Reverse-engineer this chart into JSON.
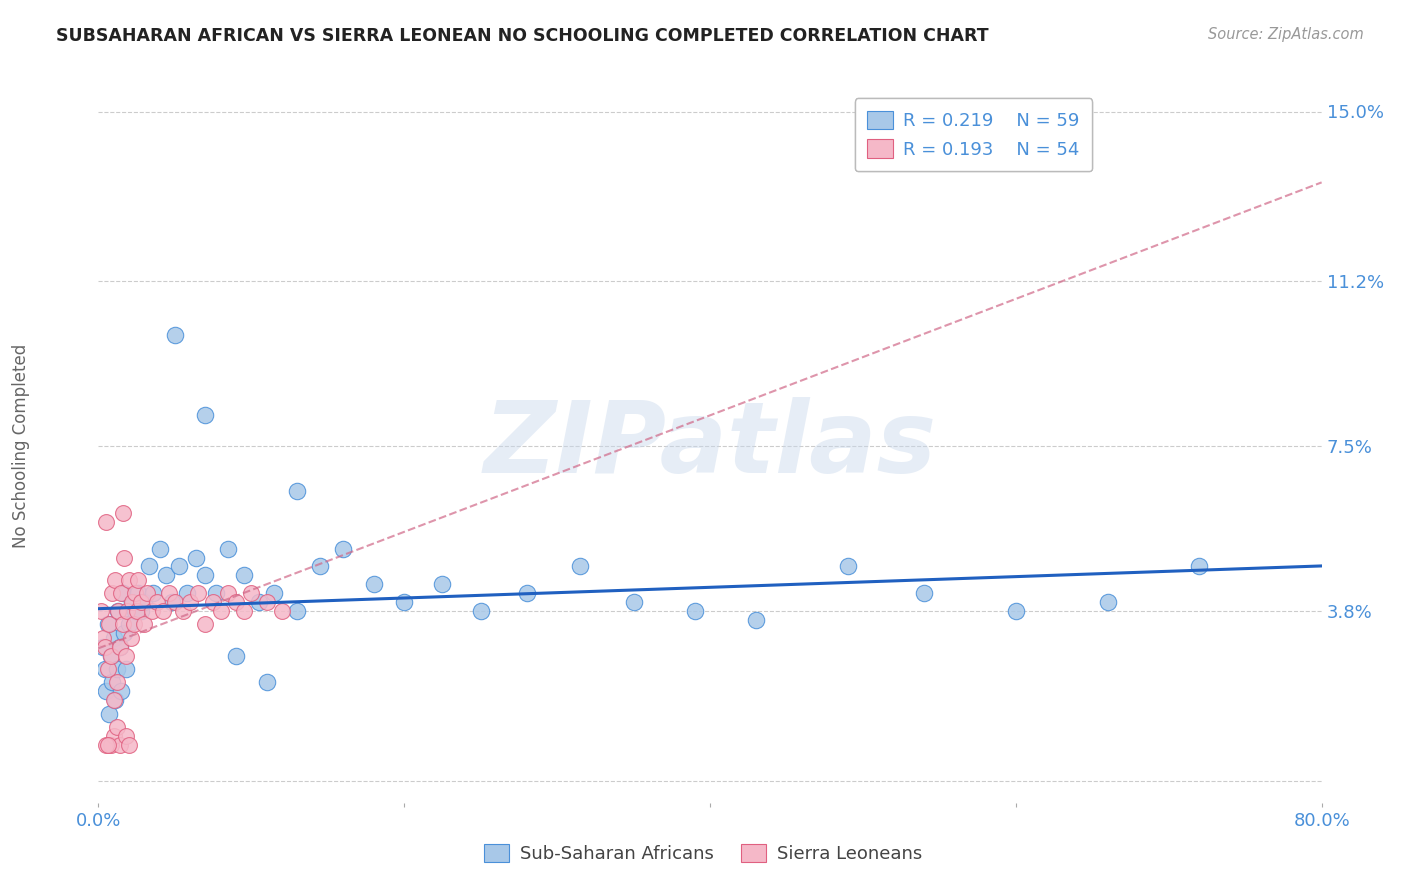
{
  "title": "SUBSAHARAN AFRICAN VS SIERRA LEONEAN NO SCHOOLING COMPLETED CORRELATION CHART",
  "source": "Source: ZipAtlas.com",
  "ylabel": "No Schooling Completed",
  "xlim": [
    0.0,
    0.8
  ],
  "ylim": [
    -0.005,
    0.155
  ],
  "yticks": [
    0.0,
    0.038,
    0.075,
    0.112,
    0.15
  ],
  "ytick_labels": [
    "",
    "3.8%",
    "7.5%",
    "11.2%",
    "15.0%"
  ],
  "xticks": [
    0.0,
    0.2,
    0.4,
    0.6,
    0.8
  ],
  "xtick_labels": [
    "0.0%",
    "",
    "",
    "",
    "80.0%"
  ],
  "blue_R": "0.219",
  "blue_N": "59",
  "pink_R": "0.193",
  "pink_N": "54",
  "blue_fill": "#a8c8e8",
  "blue_edge": "#4a90d9",
  "pink_fill": "#f5b8c8",
  "pink_edge": "#e06080",
  "blue_line_color": "#2060c0",
  "pink_line_color": "#d06888",
  "watermark": "ZIPatlas",
  "bg": "#ffffff",
  "grid_color": "#cccccc",
  "title_color": "#222222",
  "source_color": "#999999",
  "tick_color": "#4a90d9",
  "blue_x": [
    0.003,
    0.004,
    0.005,
    0.006,
    0.007,
    0.008,
    0.009,
    0.01,
    0.011,
    0.012,
    0.013,
    0.014,
    0.015,
    0.016,
    0.017,
    0.018,
    0.019,
    0.02,
    0.022,
    0.024,
    0.026,
    0.028,
    0.03,
    0.033,
    0.036,
    0.04,
    0.044,
    0.048,
    0.053,
    0.058,
    0.064,
    0.07,
    0.077,
    0.085,
    0.095,
    0.105,
    0.115,
    0.13,
    0.145,
    0.16,
    0.18,
    0.2,
    0.225,
    0.25,
    0.28,
    0.315,
    0.35,
    0.39,
    0.43,
    0.49,
    0.54,
    0.6,
    0.66,
    0.72,
    0.05,
    0.07,
    0.09,
    0.11,
    0.13
  ],
  "blue_y": [
    0.03,
    0.025,
    0.02,
    0.035,
    0.015,
    0.028,
    0.022,
    0.032,
    0.018,
    0.025,
    0.038,
    0.03,
    0.02,
    0.042,
    0.033,
    0.025,
    0.038,
    0.035,
    0.04,
    0.038,
    0.042,
    0.038,
    0.04,
    0.048,
    0.042,
    0.052,
    0.046,
    0.04,
    0.048,
    0.042,
    0.05,
    0.046,
    0.042,
    0.052,
    0.046,
    0.04,
    0.042,
    0.038,
    0.048,
    0.052,
    0.044,
    0.04,
    0.044,
    0.038,
    0.042,
    0.048,
    0.04,
    0.038,
    0.036,
    0.048,
    0.042,
    0.038,
    0.04,
    0.048,
    0.1,
    0.082,
    0.028,
    0.022,
    0.065
  ],
  "pink_x": [
    0.002,
    0.003,
    0.004,
    0.005,
    0.006,
    0.007,
    0.008,
    0.009,
    0.01,
    0.011,
    0.012,
    0.013,
    0.014,
    0.015,
    0.016,
    0.017,
    0.018,
    0.019,
    0.02,
    0.021,
    0.022,
    0.023,
    0.024,
    0.025,
    0.026,
    0.028,
    0.03,
    0.032,
    0.035,
    0.038,
    0.042,
    0.046,
    0.05,
    0.055,
    0.06,
    0.065,
    0.07,
    0.075,
    0.08,
    0.085,
    0.09,
    0.095,
    0.1,
    0.11,
    0.12,
    0.008,
    0.01,
    0.012,
    0.014,
    0.016,
    0.018,
    0.02,
    0.005,
    0.006
  ],
  "pink_y": [
    0.038,
    0.032,
    0.03,
    0.058,
    0.025,
    0.035,
    0.028,
    0.042,
    0.018,
    0.045,
    0.022,
    0.038,
    0.03,
    0.042,
    0.035,
    0.05,
    0.028,
    0.038,
    0.045,
    0.032,
    0.04,
    0.035,
    0.042,
    0.038,
    0.045,
    0.04,
    0.035,
    0.042,
    0.038,
    0.04,
    0.038,
    0.042,
    0.04,
    0.038,
    0.04,
    0.042,
    0.035,
    0.04,
    0.038,
    0.042,
    0.04,
    0.038,
    0.042,
    0.04,
    0.038,
    0.008,
    0.01,
    0.012,
    0.008,
    0.06,
    0.01,
    0.008,
    0.008,
    0.008
  ]
}
